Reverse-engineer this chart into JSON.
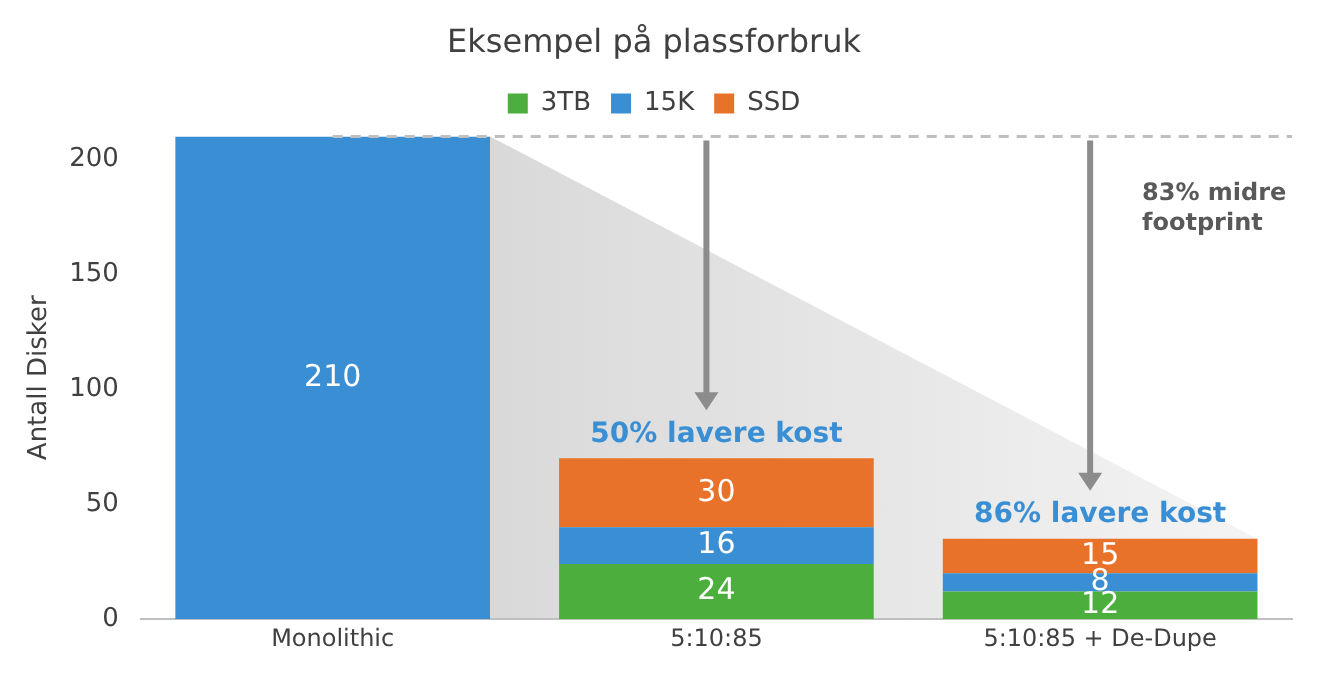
{
  "chart_data": {
    "type": "bar",
    "title": "Eksempel på plassforbruk",
    "ylabel": "Antall Disker",
    "categories": [
      "Monolithic",
      "5:10:85",
      "5:10:85 + De-Dupe"
    ],
    "stacked": true,
    "series": [
      {
        "name": "3TB",
        "color": "#4cae3c",
        "values": [
          null,
          24,
          12
        ]
      },
      {
        "name": "15K",
        "color": "#3a8fd4",
        "values": [
          210,
          16,
          8
        ]
      },
      {
        "name": "SSD",
        "color": "#e8722a",
        "values": [
          null,
          30,
          15
        ]
      }
    ],
    "ylim": [
      0,
      210
    ],
    "yticks": [
      0,
      50,
      100,
      150,
      200
    ],
    "grid": false,
    "legend": "top",
    "data_labels": true,
    "ref_lines": [
      {
        "axis": "y",
        "value": 210,
        "color": "#bfbfbf",
        "line_style": "dashed"
      }
    ],
    "annotations": [
      {
        "text": "50% lavere kost",
        "x": "5:10:85",
        "y": 70
      },
      {
        "text": "86% lavere kost",
        "x": "5:10:85 + De-Dupe",
        "y": 35
      },
      "83% midre footprint"
    ]
  }
}
